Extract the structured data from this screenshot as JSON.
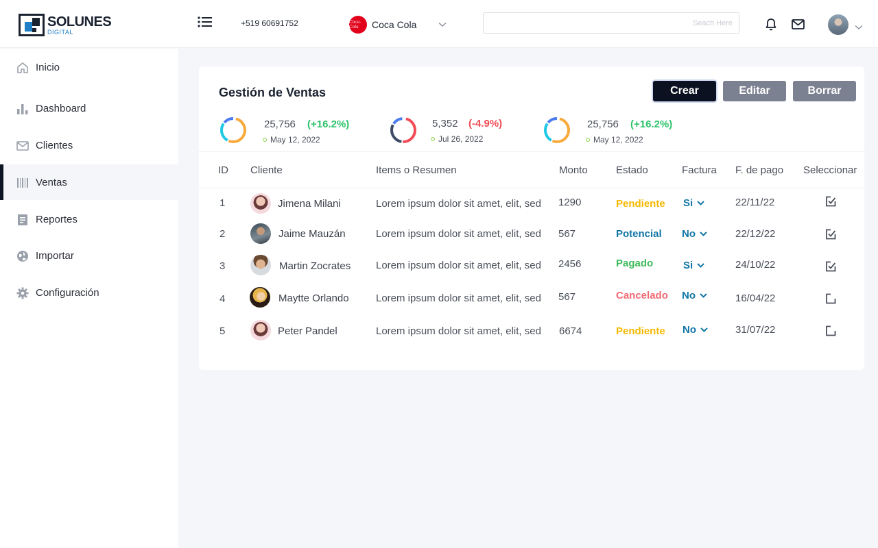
{
  "brand": {
    "name": "SOLUNES",
    "tagline": "DIGITAL"
  },
  "header": {
    "phone": "+519 60691752",
    "company": {
      "name": "Coca Cola",
      "logo_text": "Coca-Cola"
    },
    "search": {
      "placeholder": "Seach Here",
      "value": ""
    },
    "icons": [
      "menu-icon",
      "bell-icon",
      "mail-icon",
      "chevron-down-icon"
    ]
  },
  "sidebar": {
    "items": [
      {
        "label": "Inicio",
        "icon": "home-icon"
      },
      {
        "label": "Dashboard",
        "icon": "bar-chart-icon"
      },
      {
        "label": "Clientes",
        "icon": "envelope-icon"
      },
      {
        "label": "Ventas",
        "icon": "barcode-icon",
        "active": true
      },
      {
        "label": "Reportes",
        "icon": "document-icon"
      },
      {
        "label": "Importar",
        "icon": "globe-icon"
      },
      {
        "label": "Configuración",
        "icon": "gear-icon"
      }
    ]
  },
  "main": {
    "title": "Gestión de Ventas",
    "buttons": {
      "crear": "Crear",
      "editar": "Editar",
      "borrar": "Borrar"
    },
    "stats": [
      {
        "value": "25,756",
        "change": "(+16.2%)",
        "date": "May 12, 2022",
        "trend": "up"
      },
      {
        "value": "5,352",
        "change": "(-4.9%)",
        "date": "Jul 26, 2022",
        "trend": "down"
      },
      {
        "value": "25,756",
        "change": "(+16.2%)",
        "date": "May 12, 2022",
        "trend": "up"
      }
    ],
    "table": {
      "headers": [
        "ID",
        "Cliente",
        "Items o Resumen",
        "Monto",
        "Estado",
        "Factura",
        "F. de pago",
        "Seleccionar"
      ],
      "rows": [
        {
          "id": "1",
          "cliente": "Jimena Milani",
          "resumen": "Lorem ipsum dolor sit amet, elit, sed",
          "monto": "1290",
          "estado": "Pendiente",
          "factura": "Si",
          "fecha": "22/11/22",
          "seleccionado": true
        },
        {
          "id": "2",
          "cliente": "Jaime Mauzán",
          "resumen": "Lorem ipsum dolor sit amet, elit, sed",
          "monto": "567",
          "estado": "Potencial",
          "factura": "No",
          "fecha": "22/12/22",
          "seleccionado": true
        },
        {
          "id": "3",
          "cliente": "Martin Zocrates",
          "resumen": "Lorem ipsum dolor sit amet, elit, sed",
          "monto": "2456",
          "estado": "Pagado",
          "factura": "Si",
          "fecha": "24/10/22",
          "seleccionado": true
        },
        {
          "id": "4",
          "cliente": "Maytte Orlando",
          "resumen": "Lorem ipsum dolor sit amet, elit, sed",
          "monto": "567",
          "estado": "Cancelado",
          "factura": "No",
          "fecha": "16/04/22",
          "seleccionado": false
        },
        {
          "id": "5",
          "cliente": "Peter Pandel",
          "resumen": "Lorem ipsum dolor sit amet, elit, sed",
          "monto": "6674",
          "estado": "Pendiente",
          "factura": "No",
          "fecha": "31/07/22",
          "seleccionado": false
        }
      ]
    }
  },
  "colors": {
    "primary_dark": "#0b1120",
    "button_gray": "#7b8190",
    "positive": "#2fc26a",
    "negative": "#ef4d56",
    "pendiente": "#f5b800",
    "potencial": "#1276a6",
    "pagado": "#3fba5c",
    "cancelado": "#f06a74"
  }
}
